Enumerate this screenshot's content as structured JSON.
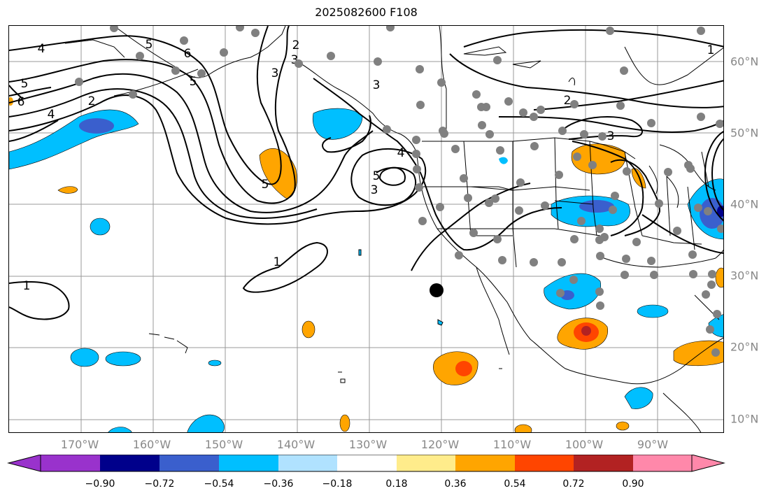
{
  "title": "2025082600 F108",
  "lon_labels": [
    "170°W",
    "160°W",
    "150°W",
    "140°W",
    "130°W",
    "120°W",
    "110°W",
    "100°W",
    "90°W"
  ],
  "lat_labels": [
    "60°N",
    "50°N",
    "40°N",
    "30°N",
    "20°N",
    "10°N"
  ],
  "contour_labels": [
    "4",
    "5",
    "6",
    "5",
    "4",
    "2",
    "6",
    "5",
    "3",
    "2",
    "3",
    "3",
    "4",
    "5",
    "3",
    "5",
    "1",
    "1",
    "2",
    "3",
    "1"
  ],
  "colorbar": {
    "ticks": [
      "−0.90",
      "−0.72",
      "−0.54",
      "−0.36",
      "−0.18",
      "0.18",
      "0.36",
      "0.54",
      "0.72",
      "0.90"
    ],
    "colors": [
      "#9932cc",
      "#00008b",
      "#3a5fcd",
      "#00bfff",
      "#b0e2ff",
      "#ffffff",
      "#ffec8b",
      "#ffa500",
      "#ff4500",
      "#b22222",
      "#ff88aa"
    ]
  }
}
